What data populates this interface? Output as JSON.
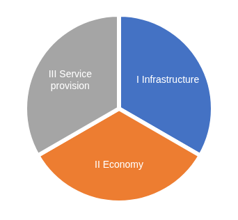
{
  "chart_data": {
    "type": "pie",
    "categories": [
      "I Infrastructure",
      "II Economy",
      "III Service provision"
    ],
    "values": [
      33.3,
      33.3,
      33.3
    ],
    "colors": [
      "#4472c4",
      "#ed7d31",
      "#a5a5a5"
    ]
  }
}
